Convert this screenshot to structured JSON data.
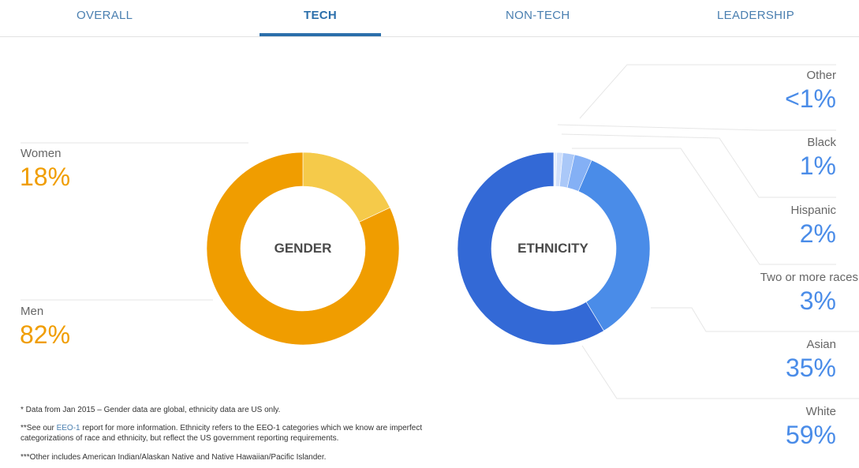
{
  "tabs": [
    "OVERALL",
    "TECH",
    "NON-TECH",
    "LEADERSHIP"
  ],
  "active_tab": "TECH",
  "colors": {
    "gender": [
      "#f5ca4a",
      "#f09d00"
    ],
    "ethnicity": [
      "#e5eefd",
      "#d1e0fb",
      "#aac8f8",
      "#84b0f5",
      "#4a8ce8",
      "#3369d6"
    ],
    "tab_active": "#2b6fab"
  },
  "chart_data": [
    {
      "type": "pie",
      "title": "GENDER",
      "categories": [
        "Women",
        "Men"
      ],
      "values": [
        18,
        82
      ],
      "labels": [
        "18%",
        "82%"
      ]
    },
    {
      "type": "pie",
      "title": "ETHNICITY",
      "categories": [
        "Other",
        "Black",
        "Hispanic",
        "Two or more races",
        "Asian",
        "White"
      ],
      "values": [
        0.5,
        1,
        2,
        3,
        35,
        59
      ],
      "labels": [
        "<1%",
        "1%",
        "2%",
        "3%",
        "35%",
        "59%"
      ]
    }
  ],
  "notes": {
    "n1": "* Data from Jan 2015 – Gender data are global, ethnicity data are US only.",
    "n2_prefix": "**See our ",
    "n2_link": "EEO-1",
    "n2_suffix": " report for more information. Ethnicity refers to the EEO-1 categories which we know are imperfect categorizations of race and ethnicity, but reflect the US government reporting requirements.",
    "n3": "***Other includes American Indian/Alaskan Native and Native Hawaiian/Pacific Islander."
  }
}
